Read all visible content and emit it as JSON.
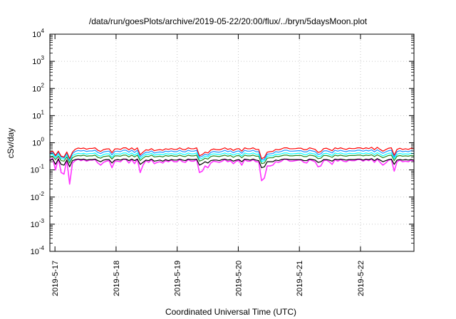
{
  "chart_data": {
    "type": "line",
    "title": "/data/run/goesPlots/archive/2019-05-22/20:00/flux/../bryn/5daysMoon.plot",
    "xlabel": "Coordinated Universal Time (UTC)",
    "ylabel": "cSv/day",
    "x_tick_labels": [
      "2019-5-17",
      "2019-5-18",
      "2019-5-19",
      "2019-5-20",
      "2019-5-21",
      "2019-5-22"
    ],
    "y_tick_labels": [
      {
        "base": "10",
        "exp": "-4"
      },
      {
        "base": "10",
        "exp": "-3"
      },
      {
        "base": "10",
        "exp": "-2"
      },
      {
        "base": "10",
        "exp": "-1"
      },
      {
        "base": "10",
        "exp": "0"
      },
      {
        "base": "10",
        "exp": "1"
      },
      {
        "base": "10",
        "exp": "2"
      },
      {
        "base": "10",
        "exp": "3"
      },
      {
        "base": "10",
        "exp": "4"
      }
    ],
    "y_log_min": -4,
    "y_log_max": 4,
    "x_start": "2019-05-16 22:00",
    "x_end": "2019-05-22 21:00",
    "grid": true,
    "series": [
      {
        "color": "#ff33ff",
        "y_values": [
          0.23,
          0.27,
          0.1,
          0.27,
          0.08,
          0.07,
          0.24,
          0.03,
          0.18,
          0.22,
          0.25,
          0.22,
          0.24,
          0.21,
          0.23,
          0.23,
          0.24,
          0.18,
          0.15,
          0.19,
          0.21,
          0.22,
          0.12,
          0.21,
          0.21,
          0.2,
          0.25,
          0.24,
          0.18,
          0.24,
          0.17,
          0.25,
          0.08,
          0.15,
          0.22,
          0.19,
          0.24,
          0.17,
          0.19,
          0.2,
          0.18,
          0.22,
          0.2,
          0.23,
          0.2,
          0.2,
          0.24,
          0.2,
          0.19,
          0.24,
          0.21,
          0.21,
          0.24,
          0.08,
          0.09,
          0.14,
          0.12,
          0.18,
          0.21,
          0.2,
          0.19,
          0.21,
          0.24,
          0.2,
          0.22,
          0.17,
          0.21,
          0.22,
          0.15,
          0.24,
          0.21,
          0.21,
          0.24,
          0.2,
          0.2,
          0.04,
          0.05,
          0.14,
          0.14,
          0.15,
          0.2,
          0.19,
          0.21,
          0.25,
          0.24,
          0.21,
          0.21,
          0.22,
          0.23,
          0.23,
          0.19,
          0.18,
          0.24,
          0.22,
          0.2,
          0.13,
          0.14,
          0.22,
          0.23,
          0.2,
          0.16,
          0.24,
          0.21,
          0.24,
          0.21,
          0.2,
          0.23,
          0.22,
          0.22,
          0.24,
          0.24,
          0.21,
          0.24,
          0.22,
          0.25,
          0.19,
          0.25,
          0.19,
          0.15,
          0.18,
          0.23,
          0.24,
          0.09,
          0.2,
          0.23,
          0.2,
          0.21,
          0.2,
          0.23,
          0.21
        ]
      },
      {
        "color": "#000000",
        "y_values": [
          0.22,
          0.25,
          0.16,
          0.25,
          0.16,
          0.15,
          0.23,
          0.13,
          0.22,
          0.24,
          0.25,
          0.24,
          0.25,
          0.23,
          0.24,
          0.24,
          0.25,
          0.22,
          0.2,
          0.23,
          0.24,
          0.24,
          0.18,
          0.23,
          0.24,
          0.23,
          0.25,
          0.25,
          0.22,
          0.25,
          0.22,
          0.25,
          0.16,
          0.19,
          0.23,
          0.22,
          0.25,
          0.21,
          0.22,
          0.23,
          0.21,
          0.24,
          0.22,
          0.24,
          0.23,
          0.23,
          0.25,
          0.23,
          0.22,
          0.25,
          0.24,
          0.24,
          0.25,
          0.15,
          0.17,
          0.2,
          0.18,
          0.22,
          0.23,
          0.23,
          0.22,
          0.24,
          0.25,
          0.23,
          0.24,
          0.21,
          0.23,
          0.24,
          0.2,
          0.25,
          0.24,
          0.23,
          0.25,
          0.23,
          0.22,
          0.12,
          0.13,
          0.2,
          0.2,
          0.2,
          0.23,
          0.22,
          0.24,
          0.25,
          0.25,
          0.24,
          0.24,
          0.24,
          0.24,
          0.24,
          0.22,
          0.22,
          0.25,
          0.24,
          0.23,
          0.19,
          0.2,
          0.24,
          0.24,
          0.23,
          0.21,
          0.25,
          0.24,
          0.25,
          0.24,
          0.23,
          0.24,
          0.24,
          0.24,
          0.25,
          0.25,
          0.23,
          0.25,
          0.24,
          0.26,
          0.22,
          0.26,
          0.23,
          0.2,
          0.22,
          0.24,
          0.25,
          0.16,
          0.23,
          0.24,
          0.23,
          0.24,
          0.23,
          0.24,
          0.23
        ]
      },
      {
        "color": "#228b22",
        "y_values": [
          0.3,
          0.32,
          0.24,
          0.32,
          0.22,
          0.21,
          0.3,
          0.18,
          0.28,
          0.32,
          0.34,
          0.33,
          0.35,
          0.32,
          0.33,
          0.33,
          0.35,
          0.29,
          0.27,
          0.31,
          0.32,
          0.33,
          0.25,
          0.33,
          0.33,
          0.32,
          0.35,
          0.35,
          0.3,
          0.35,
          0.3,
          0.35,
          0.22,
          0.27,
          0.32,
          0.31,
          0.35,
          0.3,
          0.31,
          0.32,
          0.3,
          0.34,
          0.32,
          0.34,
          0.32,
          0.32,
          0.35,
          0.32,
          0.31,
          0.35,
          0.33,
          0.33,
          0.35,
          0.21,
          0.23,
          0.27,
          0.25,
          0.31,
          0.33,
          0.32,
          0.31,
          0.33,
          0.35,
          0.32,
          0.34,
          0.29,
          0.33,
          0.34,
          0.28,
          0.35,
          0.33,
          0.33,
          0.35,
          0.32,
          0.32,
          0.17,
          0.18,
          0.27,
          0.28,
          0.28,
          0.32,
          0.31,
          0.33,
          0.35,
          0.35,
          0.33,
          0.33,
          0.34,
          0.34,
          0.34,
          0.31,
          0.31,
          0.35,
          0.34,
          0.32,
          0.26,
          0.27,
          0.34,
          0.34,
          0.32,
          0.29,
          0.35,
          0.33,
          0.35,
          0.33,
          0.32,
          0.34,
          0.34,
          0.34,
          0.35,
          0.35,
          0.33,
          0.35,
          0.34,
          0.36,
          0.31,
          0.36,
          0.32,
          0.28,
          0.31,
          0.34,
          0.35,
          0.22,
          0.32,
          0.34,
          0.32,
          0.33,
          0.32,
          0.34,
          0.33
        ]
      },
      {
        "color": "#00ffff",
        "y_values": [
          0.35,
          0.38,
          0.28,
          0.38,
          0.26,
          0.25,
          0.36,
          0.21,
          0.34,
          0.38,
          0.41,
          0.39,
          0.41,
          0.38,
          0.4,
          0.4,
          0.42,
          0.35,
          0.32,
          0.37,
          0.39,
          0.39,
          0.29,
          0.39,
          0.39,
          0.38,
          0.42,
          0.42,
          0.36,
          0.42,
          0.35,
          0.42,
          0.26,
          0.32,
          0.38,
          0.37,
          0.41,
          0.35,
          0.37,
          0.38,
          0.36,
          0.4,
          0.38,
          0.4,
          0.38,
          0.38,
          0.42,
          0.38,
          0.37,
          0.42,
          0.39,
          0.39,
          0.42,
          0.25,
          0.27,
          0.32,
          0.3,
          0.37,
          0.39,
          0.38,
          0.37,
          0.39,
          0.42,
          0.38,
          0.4,
          0.35,
          0.39,
          0.4,
          0.33,
          0.42,
          0.39,
          0.39,
          0.42,
          0.38,
          0.38,
          0.2,
          0.22,
          0.32,
          0.33,
          0.33,
          0.38,
          0.37,
          0.39,
          0.42,
          0.42,
          0.39,
          0.39,
          0.4,
          0.41,
          0.41,
          0.37,
          0.37,
          0.42,
          0.4,
          0.38,
          0.31,
          0.32,
          0.4,
          0.41,
          0.38,
          0.34,
          0.42,
          0.39,
          0.42,
          0.39,
          0.38,
          0.41,
          0.4,
          0.4,
          0.42,
          0.42,
          0.39,
          0.42,
          0.4,
          0.43,
          0.37,
          0.43,
          0.38,
          0.33,
          0.37,
          0.41,
          0.42,
          0.26,
          0.38,
          0.41,
          0.38,
          0.39,
          0.38,
          0.41,
          0.39
        ]
      },
      {
        "color": "#1e90ff",
        "y_values": [
          0.4,
          0.44,
          0.32,
          0.44,
          0.3,
          0.28,
          0.42,
          0.24,
          0.4,
          0.48,
          0.52,
          0.5,
          0.52,
          0.48,
          0.5,
          0.5,
          0.53,
          0.44,
          0.4,
          0.46,
          0.48,
          0.49,
          0.36,
          0.48,
          0.49,
          0.47,
          0.53,
          0.53,
          0.45,
          0.53,
          0.44,
          0.53,
          0.31,
          0.38,
          0.45,
          0.44,
          0.5,
          0.42,
          0.44,
          0.46,
          0.44,
          0.49,
          0.47,
          0.5,
          0.47,
          0.47,
          0.53,
          0.47,
          0.46,
          0.53,
          0.49,
          0.49,
          0.53,
          0.29,
          0.32,
          0.38,
          0.35,
          0.44,
          0.48,
          0.46,
          0.45,
          0.48,
          0.53,
          0.47,
          0.5,
          0.43,
          0.48,
          0.5,
          0.41,
          0.53,
          0.49,
          0.49,
          0.53,
          0.47,
          0.47,
          0.23,
          0.25,
          0.38,
          0.39,
          0.4,
          0.47,
          0.45,
          0.48,
          0.53,
          0.53,
          0.49,
          0.49,
          0.5,
          0.51,
          0.51,
          0.46,
          0.46,
          0.53,
          0.5,
          0.47,
          0.37,
          0.39,
          0.5,
          0.51,
          0.47,
          0.42,
          0.53,
          0.49,
          0.53,
          0.49,
          0.47,
          0.51,
          0.5,
          0.5,
          0.53,
          0.53,
          0.49,
          0.53,
          0.5,
          0.55,
          0.46,
          0.55,
          0.47,
          0.41,
          0.46,
          0.51,
          0.53,
          0.3,
          0.47,
          0.51,
          0.47,
          0.49,
          0.47,
          0.51,
          0.49
        ]
      },
      {
        "color": "#ff0000",
        "y_values": [
          0.44,
          0.49,
          0.34,
          0.49,
          0.32,
          0.3,
          0.46,
          0.26,
          0.45,
          0.58,
          0.64,
          0.61,
          0.64,
          0.58,
          0.62,
          0.62,
          0.65,
          0.53,
          0.48,
          0.56,
          0.59,
          0.6,
          0.43,
          0.59,
          0.6,
          0.57,
          0.65,
          0.65,
          0.55,
          0.65,
          0.54,
          0.65,
          0.36,
          0.45,
          0.55,
          0.53,
          0.61,
          0.51,
          0.54,
          0.56,
          0.53,
          0.6,
          0.57,
          0.61,
          0.57,
          0.57,
          0.65,
          0.57,
          0.56,
          0.65,
          0.6,
          0.6,
          0.65,
          0.33,
          0.37,
          0.45,
          0.42,
          0.54,
          0.59,
          0.56,
          0.55,
          0.59,
          0.65,
          0.57,
          0.61,
          0.52,
          0.59,
          0.61,
          0.49,
          0.65,
          0.6,
          0.6,
          0.65,
          0.57,
          0.57,
          0.26,
          0.29,
          0.45,
          0.47,
          0.48,
          0.57,
          0.55,
          0.59,
          0.65,
          0.65,
          0.6,
          0.6,
          0.61,
          0.63,
          0.63,
          0.56,
          0.56,
          0.65,
          0.61,
          0.57,
          0.44,
          0.47,
          0.61,
          0.63,
          0.57,
          0.51,
          0.65,
          0.6,
          0.65,
          0.6,
          0.57,
          0.63,
          0.61,
          0.61,
          0.65,
          0.65,
          0.6,
          0.65,
          0.61,
          0.68,
          0.56,
          0.68,
          0.57,
          0.49,
          0.56,
          0.63,
          0.65,
          0.35,
          0.57,
          0.63,
          0.57,
          0.6,
          0.57,
          0.63,
          0.6
        ]
      }
    ]
  }
}
